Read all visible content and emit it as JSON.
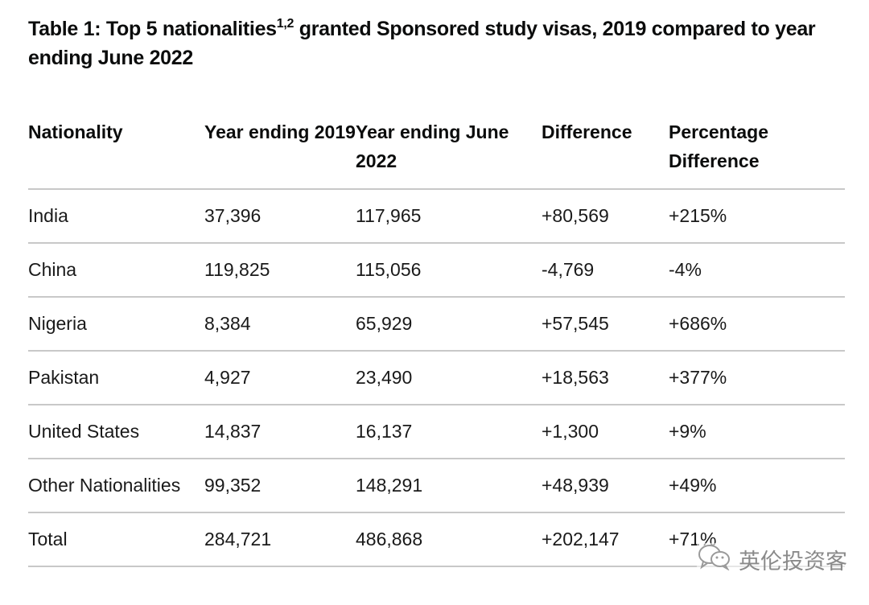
{
  "title": {
    "prefix": "Table 1: Top 5 nationalities",
    "superscript": "1,2",
    "suffix": " granted Sponsored study visas, 2019 compared to year ending June 2022"
  },
  "table": {
    "headers": [
      "Nationality",
      "Year ending 2019",
      "Year ending June 2022",
      "Difference",
      "Percentage Difference"
    ],
    "rows": [
      [
        "India",
        "37,396",
        "117,965",
        "+80,569",
        "+215%"
      ],
      [
        "China",
        "119,825",
        "115,056",
        "-4,769",
        "-4%"
      ],
      [
        "Nigeria",
        "8,384",
        "65,929",
        "+57,545",
        "+686%"
      ],
      [
        "Pakistan",
        "4,927",
        "23,490",
        "+18,563",
        "+377%"
      ],
      [
        "United States",
        "14,837",
        "16,137",
        "+1,300",
        "+9%"
      ],
      [
        "Other Nationalities",
        "99,352",
        "148,291",
        "+48,939",
        "+49%"
      ],
      [
        "Total",
        "284,721",
        "486,868",
        "+202,147",
        "+71%"
      ]
    ]
  },
  "watermark": {
    "icon": "wechat-icon",
    "text": "英伦投资客"
  }
}
